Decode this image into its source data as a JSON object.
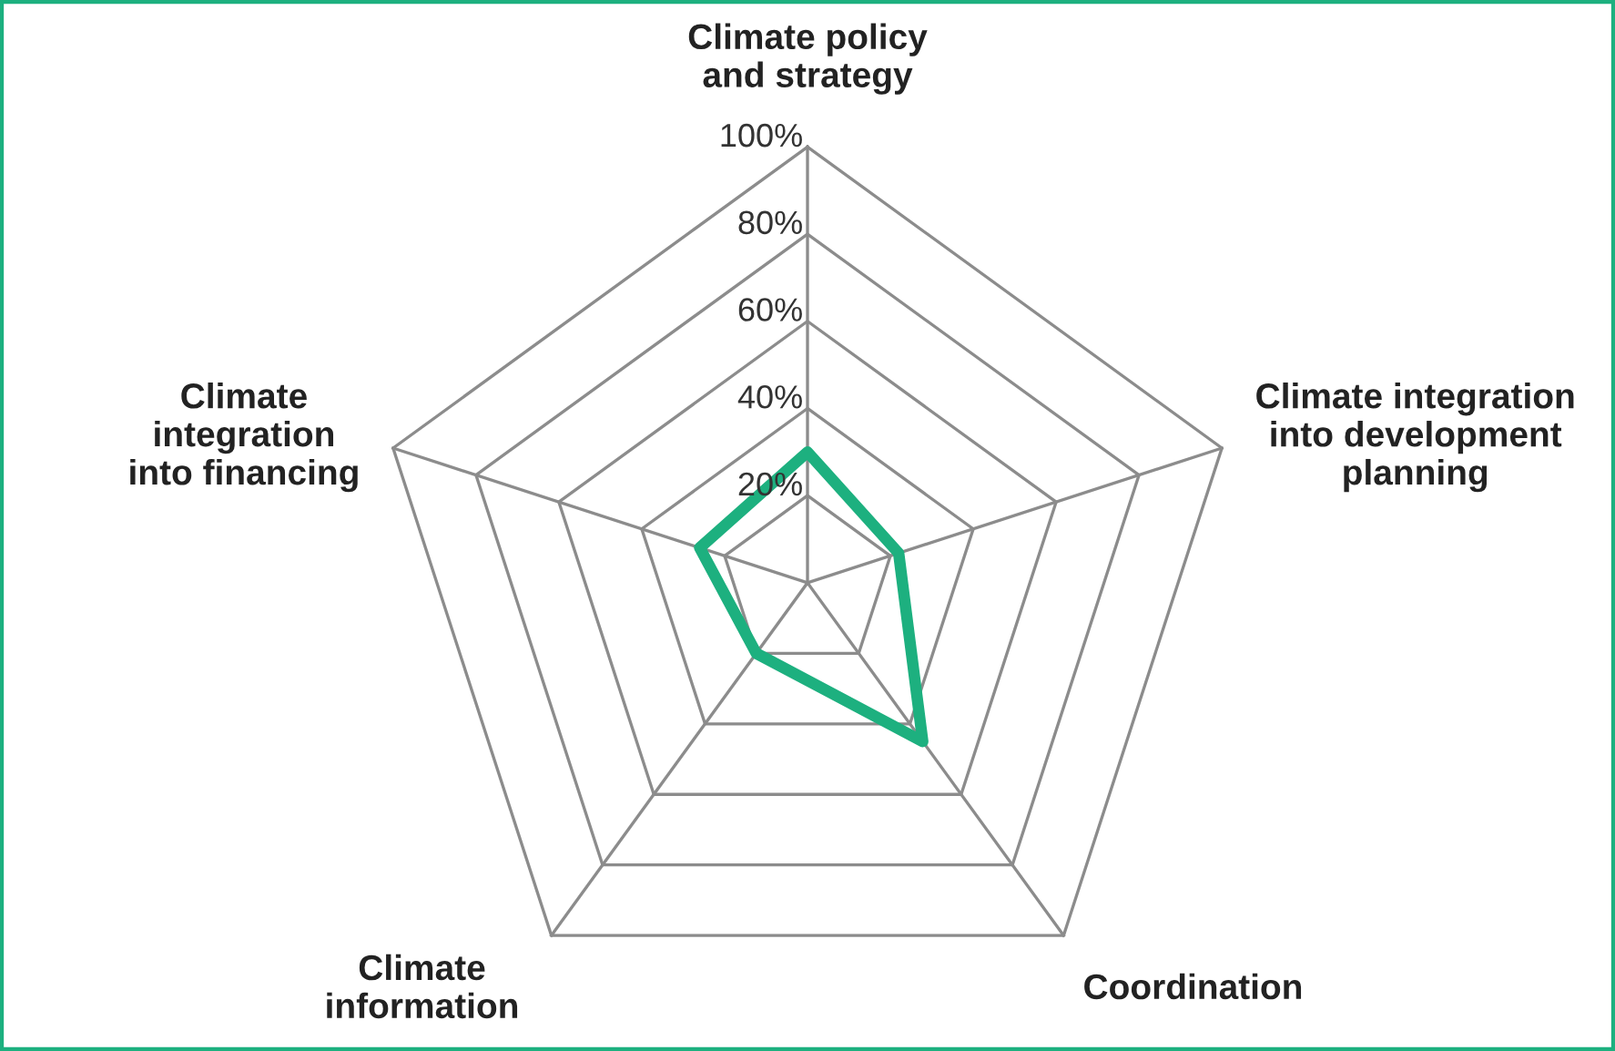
{
  "chart_data": {
    "type": "radar",
    "categories": [
      "Climate policy\nand strategy",
      "Climate integration\ninto development\nplanning",
      "Coordination",
      "Climate\ninformation",
      "Climate\nintegration\ninto financing"
    ],
    "series": [
      {
        "color": "#1db07f",
        "values": [
          30,
          22,
          45,
          20,
          26
        ]
      }
    ],
    "ylim": [
      0,
      100
    ],
    "yticks": [
      {
        "value": 20,
        "label": "20%"
      },
      {
        "value": 40,
        "label": "40%"
      },
      {
        "value": 60,
        "label": "60%"
      },
      {
        "value": 80,
        "label": "80%"
      },
      {
        "value": 100,
        "label": "100%"
      }
    ],
    "grid": true,
    "legend": false
  }
}
